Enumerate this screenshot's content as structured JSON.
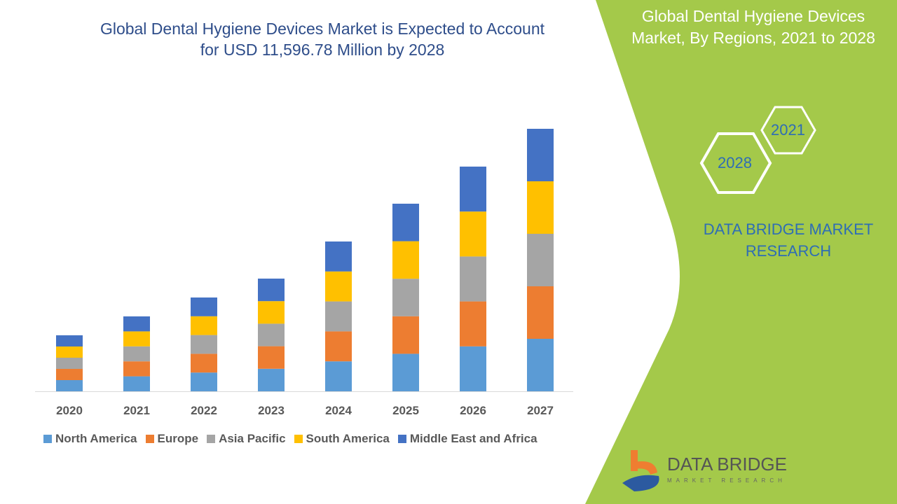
{
  "title_line1": "Global Dental Hygiene Devices Market is Expected to Account",
  "title_line2": "for USD 11,596.78 Million by 2028",
  "side_panel": {
    "title_line1": "Global Dental Hygiene Devices",
    "title_line2": "Market, By Regions, 2021 to 2028",
    "hex_year_1": "2021",
    "hex_year_2": "2028",
    "brand_line1": "DATA BRIDGE MARKET",
    "brand_line2": "RESEARCH",
    "accent_color": "#a4c94a"
  },
  "logo": {
    "name": "DATA BRIDGE",
    "sub": "MARKET RESEARCH"
  },
  "watermark": "DATA BRIDGE MARKET RESEARCH",
  "chart_data": {
    "type": "bar",
    "stacked": true,
    "title": "Global Dental Hygiene Devices Market is Expected to Account for USD 11,596.78 Million by 2028",
    "categories": [
      "2020",
      "2021",
      "2022",
      "2023",
      "2024",
      "2025",
      "2026",
      "2027"
    ],
    "series": [
      {
        "name": "North America",
        "color": "#5b9bd5",
        "values": [
          16,
          21.4,
          26.8,
          32.2,
          42.8,
          53.6,
          64.2,
          75
        ]
      },
      {
        "name": "Europe",
        "color": "#ed7d31",
        "values": [
          16,
          21.4,
          26.8,
          32.2,
          42.8,
          53.6,
          64.2,
          75
        ]
      },
      {
        "name": "Asia Pacific",
        "color": "#a5a5a5",
        "values": [
          16,
          21.4,
          26.8,
          32.2,
          42.8,
          53.6,
          64.2,
          75
        ]
      },
      {
        "name": "South America",
        "color": "#ffc000",
        "values": [
          16,
          21.4,
          26.8,
          32.2,
          42.8,
          53.6,
          64.2,
          75
        ]
      },
      {
        "name": "Middle East and Africa",
        "color": "#4472c4",
        "values": [
          16,
          21.4,
          26.8,
          32.2,
          42.8,
          53.6,
          64.2,
          75
        ]
      }
    ],
    "y_axis_shown": false,
    "grid": false,
    "legend": "bottom"
  }
}
